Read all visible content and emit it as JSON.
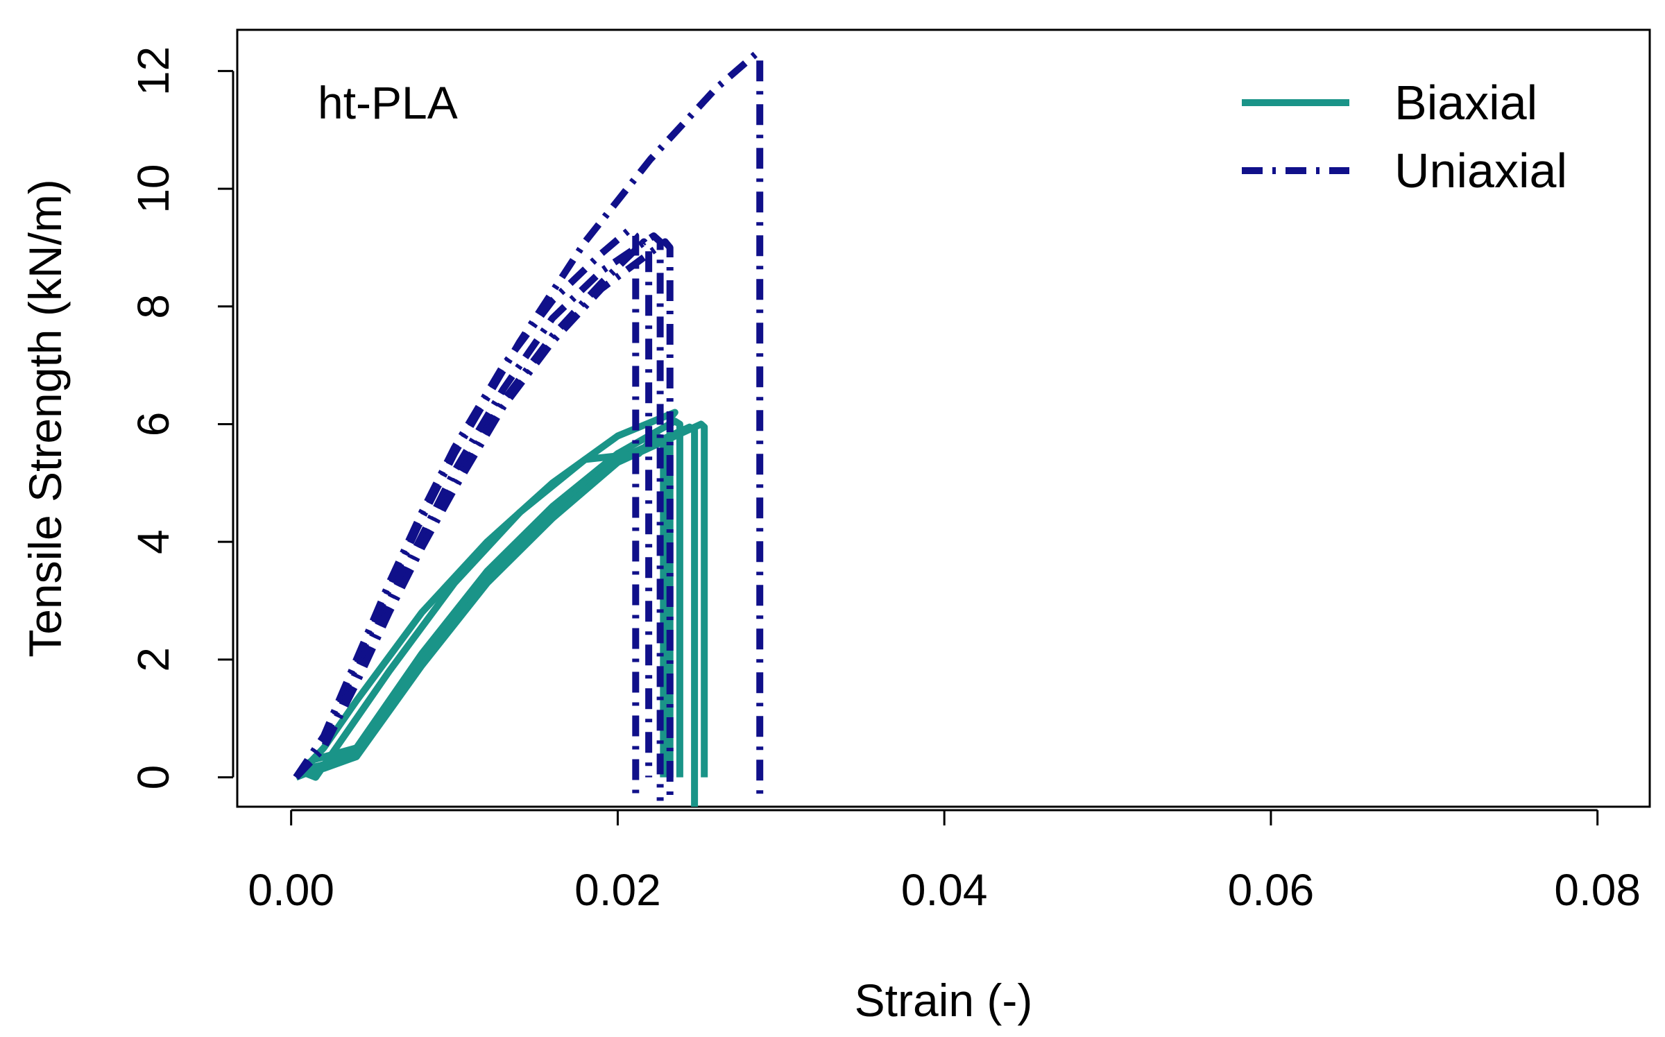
{
  "chart_data": {
    "type": "line",
    "annotation": "ht-PLA",
    "xlabel": "Strain (-)",
    "ylabel": "Tensile Strength  (kN/m)",
    "xlim": [
      -0.0033,
      0.0832
    ],
    "ylim": [
      -0.5,
      12.7
    ],
    "xticks": [
      0.0,
      0.02,
      0.04,
      0.06,
      0.08
    ],
    "xtick_labels": [
      "0.00",
      "0.02",
      "0.04",
      "0.06",
      "0.08"
    ],
    "yticks": [
      0,
      2,
      4,
      6,
      8,
      10,
      12
    ],
    "ytick_labels": [
      "0",
      "2",
      "4",
      "6",
      "8",
      "10",
      "12"
    ],
    "grid": false,
    "legend_position": "top-right",
    "styles": {
      "Biaxial": {
        "color": "#1a9488",
        "dash": "solid"
      },
      "Uniaxial": {
        "color": "#10108a",
        "dash": "dashdot"
      }
    },
    "legend": [
      {
        "name": "Biaxial",
        "style": "Biaxial"
      },
      {
        "name": "Uniaxial",
        "style": "Uniaxial"
      }
    ],
    "series": [
      {
        "name": "Biaxial",
        "style": "Biaxial",
        "x": [
          0.0003,
          0.0008,
          0.0014,
          0.004,
          0.008,
          0.012,
          0.016,
          0.02,
          0.0235,
          0.0238,
          0.0238
        ],
        "y": [
          0,
          0.2,
          0.3,
          0.5,
          2.1,
          3.5,
          4.6,
          5.5,
          6.05,
          6.0,
          0.0
        ]
      },
      {
        "name": "Biaxial",
        "style": "Biaxial",
        "x": [
          0.0003,
          0.001,
          0.0018,
          0.004,
          0.008,
          0.012,
          0.016,
          0.02,
          0.0244,
          0.0247,
          0.0247
        ],
        "y": [
          0,
          0.15,
          0.2,
          0.4,
          2.0,
          3.4,
          4.5,
          5.4,
          5.95,
          5.9,
          -0.5
        ]
      },
      {
        "name": "Biaxial",
        "style": "Biaxial",
        "x": [
          0.0003,
          0.0012,
          0.002,
          0.004,
          0.008,
          0.012,
          0.016,
          0.02,
          0.0251,
          0.0253,
          0.0253
        ],
        "y": [
          0,
          0.1,
          0.15,
          0.35,
          1.9,
          3.3,
          4.4,
          5.35,
          6.0,
          5.95,
          0.0
        ]
      },
      {
        "name": "Biaxial",
        "style": "Biaxial",
        "x": [
          0.0003,
          0.0006,
          0.0015,
          0.003,
          0.006,
          0.01,
          0.014,
          0.018,
          0.0213,
          0.0223,
          0.0228,
          0.0228
        ],
        "y": [
          0,
          0.1,
          0.0,
          0.6,
          1.8,
          3.3,
          4.5,
          5.4,
          5.5,
          5.8,
          5.75,
          0.0
        ]
      },
      {
        "name": "Biaxial",
        "style": "Biaxial",
        "x": [
          0.0003,
          0.002,
          0.004,
          0.008,
          0.012,
          0.016,
          0.02,
          0.0235,
          0.0232,
          0.0232
        ],
        "y": [
          0,
          0.5,
          1.3,
          2.8,
          4.0,
          5.0,
          5.8,
          6.2,
          6.1,
          0.0
        ]
      },
      {
        "name": "Uniaxial",
        "style": "Uniaxial",
        "x": [
          0.0003,
          0.002,
          0.004,
          0.006,
          0.008,
          0.01,
          0.014,
          0.018,
          0.022,
          0.026,
          0.0285,
          0.0287,
          0.0287
        ],
        "y": [
          0,
          0.6,
          1.9,
          3.2,
          4.4,
          5.5,
          7.4,
          9.1,
          10.5,
          11.7,
          12.3,
          12.2,
          -0.3
        ]
      },
      {
        "name": "Uniaxial",
        "style": "Uniaxial",
        "x": [
          0.0003,
          0.002,
          0.004,
          0.006,
          0.008,
          0.01,
          0.013,
          0.016,
          0.019,
          0.0207,
          0.0211,
          0.0211
        ],
        "y": [
          0,
          0.7,
          2.0,
          3.3,
          4.5,
          5.6,
          7.0,
          8.1,
          8.9,
          9.3,
          9.2,
          -0.4
        ]
      },
      {
        "name": "Uniaxial",
        "style": "Uniaxial",
        "x": [
          0.0003,
          0.002,
          0.004,
          0.006,
          0.008,
          0.01,
          0.013,
          0.016,
          0.019,
          0.0222,
          0.0226,
          0.0226
        ],
        "y": [
          0,
          0.5,
          1.8,
          3.0,
          4.1,
          5.2,
          6.6,
          7.8,
          8.6,
          9.2,
          9.1,
          -0.4
        ]
      },
      {
        "name": "Uniaxial",
        "style": "Uniaxial",
        "x": [
          0.0003,
          0.002,
          0.004,
          0.006,
          0.008,
          0.01,
          0.013,
          0.016,
          0.019,
          0.0216,
          0.0219,
          0.0219
        ],
        "y": [
          0,
          0.5,
          1.7,
          2.9,
          4.0,
          5.0,
          6.4,
          7.5,
          8.4,
          9.1,
          9.0,
          0.0
        ]
      },
      {
        "name": "Uniaxial",
        "style": "Uniaxial",
        "x": [
          0.0003,
          0.002,
          0.004,
          0.006,
          0.008,
          0.01,
          0.013,
          0.016,
          0.019,
          0.0229,
          0.0232,
          0.0232
        ],
        "y": [
          0,
          0.5,
          1.6,
          2.8,
          3.9,
          4.9,
          6.3,
          7.4,
          8.3,
          9.1,
          9.0,
          -0.3
        ]
      }
    ]
  }
}
